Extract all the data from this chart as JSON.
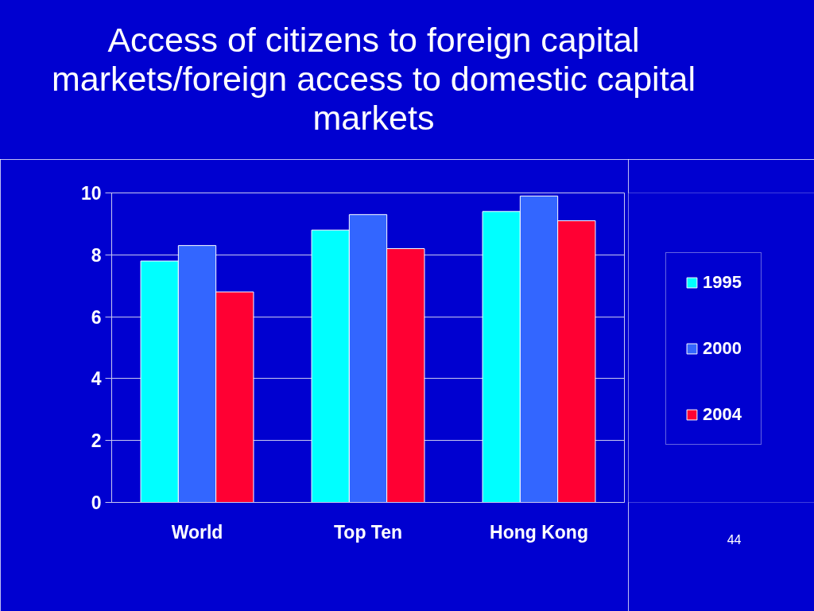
{
  "chart_data": {
    "type": "bar",
    "title": "Access of citizens to foreign capital markets/foreign access to domestic capital markets",
    "categories": [
      "World",
      "Top Ten",
      "Hong Kong"
    ],
    "series": [
      {
        "name": "1995",
        "color": "#00ffff",
        "values": [
          7.8,
          8.8,
          9.4
        ]
      },
      {
        "name": "2000",
        "color": "#3366ff",
        "values": [
          8.3,
          9.3,
          9.9
        ]
      },
      {
        "name": "2004",
        "color": "#ff0033",
        "values": [
          6.8,
          8.2,
          9.1
        ]
      }
    ],
    "ylim": [
      0,
      10
    ],
    "yticks": [
      0,
      2,
      4,
      6,
      8,
      10
    ],
    "grid": "y",
    "legend": "right",
    "annotations": [
      "44"
    ]
  }
}
